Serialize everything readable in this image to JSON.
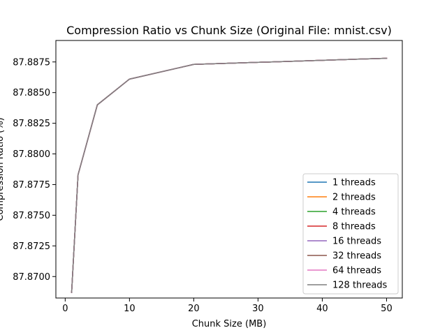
{
  "chart_data": {
    "type": "line",
    "title": "Compression Ratio vs Chunk Size (Original File: mnist.csv)",
    "xlabel": "Chunk Size (MB)",
    "ylabel": "Compression Ratio (%)",
    "xlim": [
      -1.45,
      52.45
    ],
    "ylim": [
      87.86825,
      87.88925
    ],
    "xticks": [
      0,
      10,
      20,
      30,
      40,
      50
    ],
    "xtick_labels": [
      "0",
      "10",
      "20",
      "30",
      "40",
      "50"
    ],
    "yticks": [
      87.87,
      87.8725,
      87.875,
      87.8775,
      87.88,
      87.8825,
      87.885,
      87.8875
    ],
    "ytick_labels": [
      "87.8700",
      "87.8725",
      "87.8750",
      "87.8775",
      "87.8800",
      "87.8825",
      "87.8850",
      "87.8875"
    ],
    "x": [
      1,
      2,
      5,
      10,
      20,
      50
    ],
    "grid": false,
    "legend_position": "lower-right",
    "series": [
      {
        "name": "1 threads",
        "color": "#1f77b4",
        "values": [
          87.8687,
          87.8783,
          87.884,
          87.8861,
          87.8873,
          87.8878
        ]
      },
      {
        "name": "2 threads",
        "color": "#ff7f0e",
        "values": [
          87.8687,
          87.8783,
          87.884,
          87.8861,
          87.8873,
          87.8878
        ]
      },
      {
        "name": "4 threads",
        "color": "#2ca02c",
        "values": [
          87.8687,
          87.8783,
          87.884,
          87.8861,
          87.8873,
          87.8878
        ]
      },
      {
        "name": "8 threads",
        "color": "#d62728",
        "values": [
          87.8687,
          87.8783,
          87.884,
          87.8861,
          87.8873,
          87.8878
        ]
      },
      {
        "name": "16 threads",
        "color": "#9467bd",
        "values": [
          87.8687,
          87.8783,
          87.884,
          87.8861,
          87.8873,
          87.8878
        ]
      },
      {
        "name": "32 threads",
        "color": "#8c564b",
        "values": [
          87.8687,
          87.8783,
          87.884,
          87.8861,
          87.8873,
          87.8878
        ]
      },
      {
        "name": "64 threads",
        "color": "#e377c2",
        "values": [
          87.8687,
          87.8783,
          87.884,
          87.8861,
          87.8873,
          87.8878
        ]
      },
      {
        "name": "128 threads",
        "color": "#7f7f7f",
        "values": [
          87.8687,
          87.8783,
          87.884,
          87.8861,
          87.8873,
          87.8878
        ]
      }
    ]
  }
}
